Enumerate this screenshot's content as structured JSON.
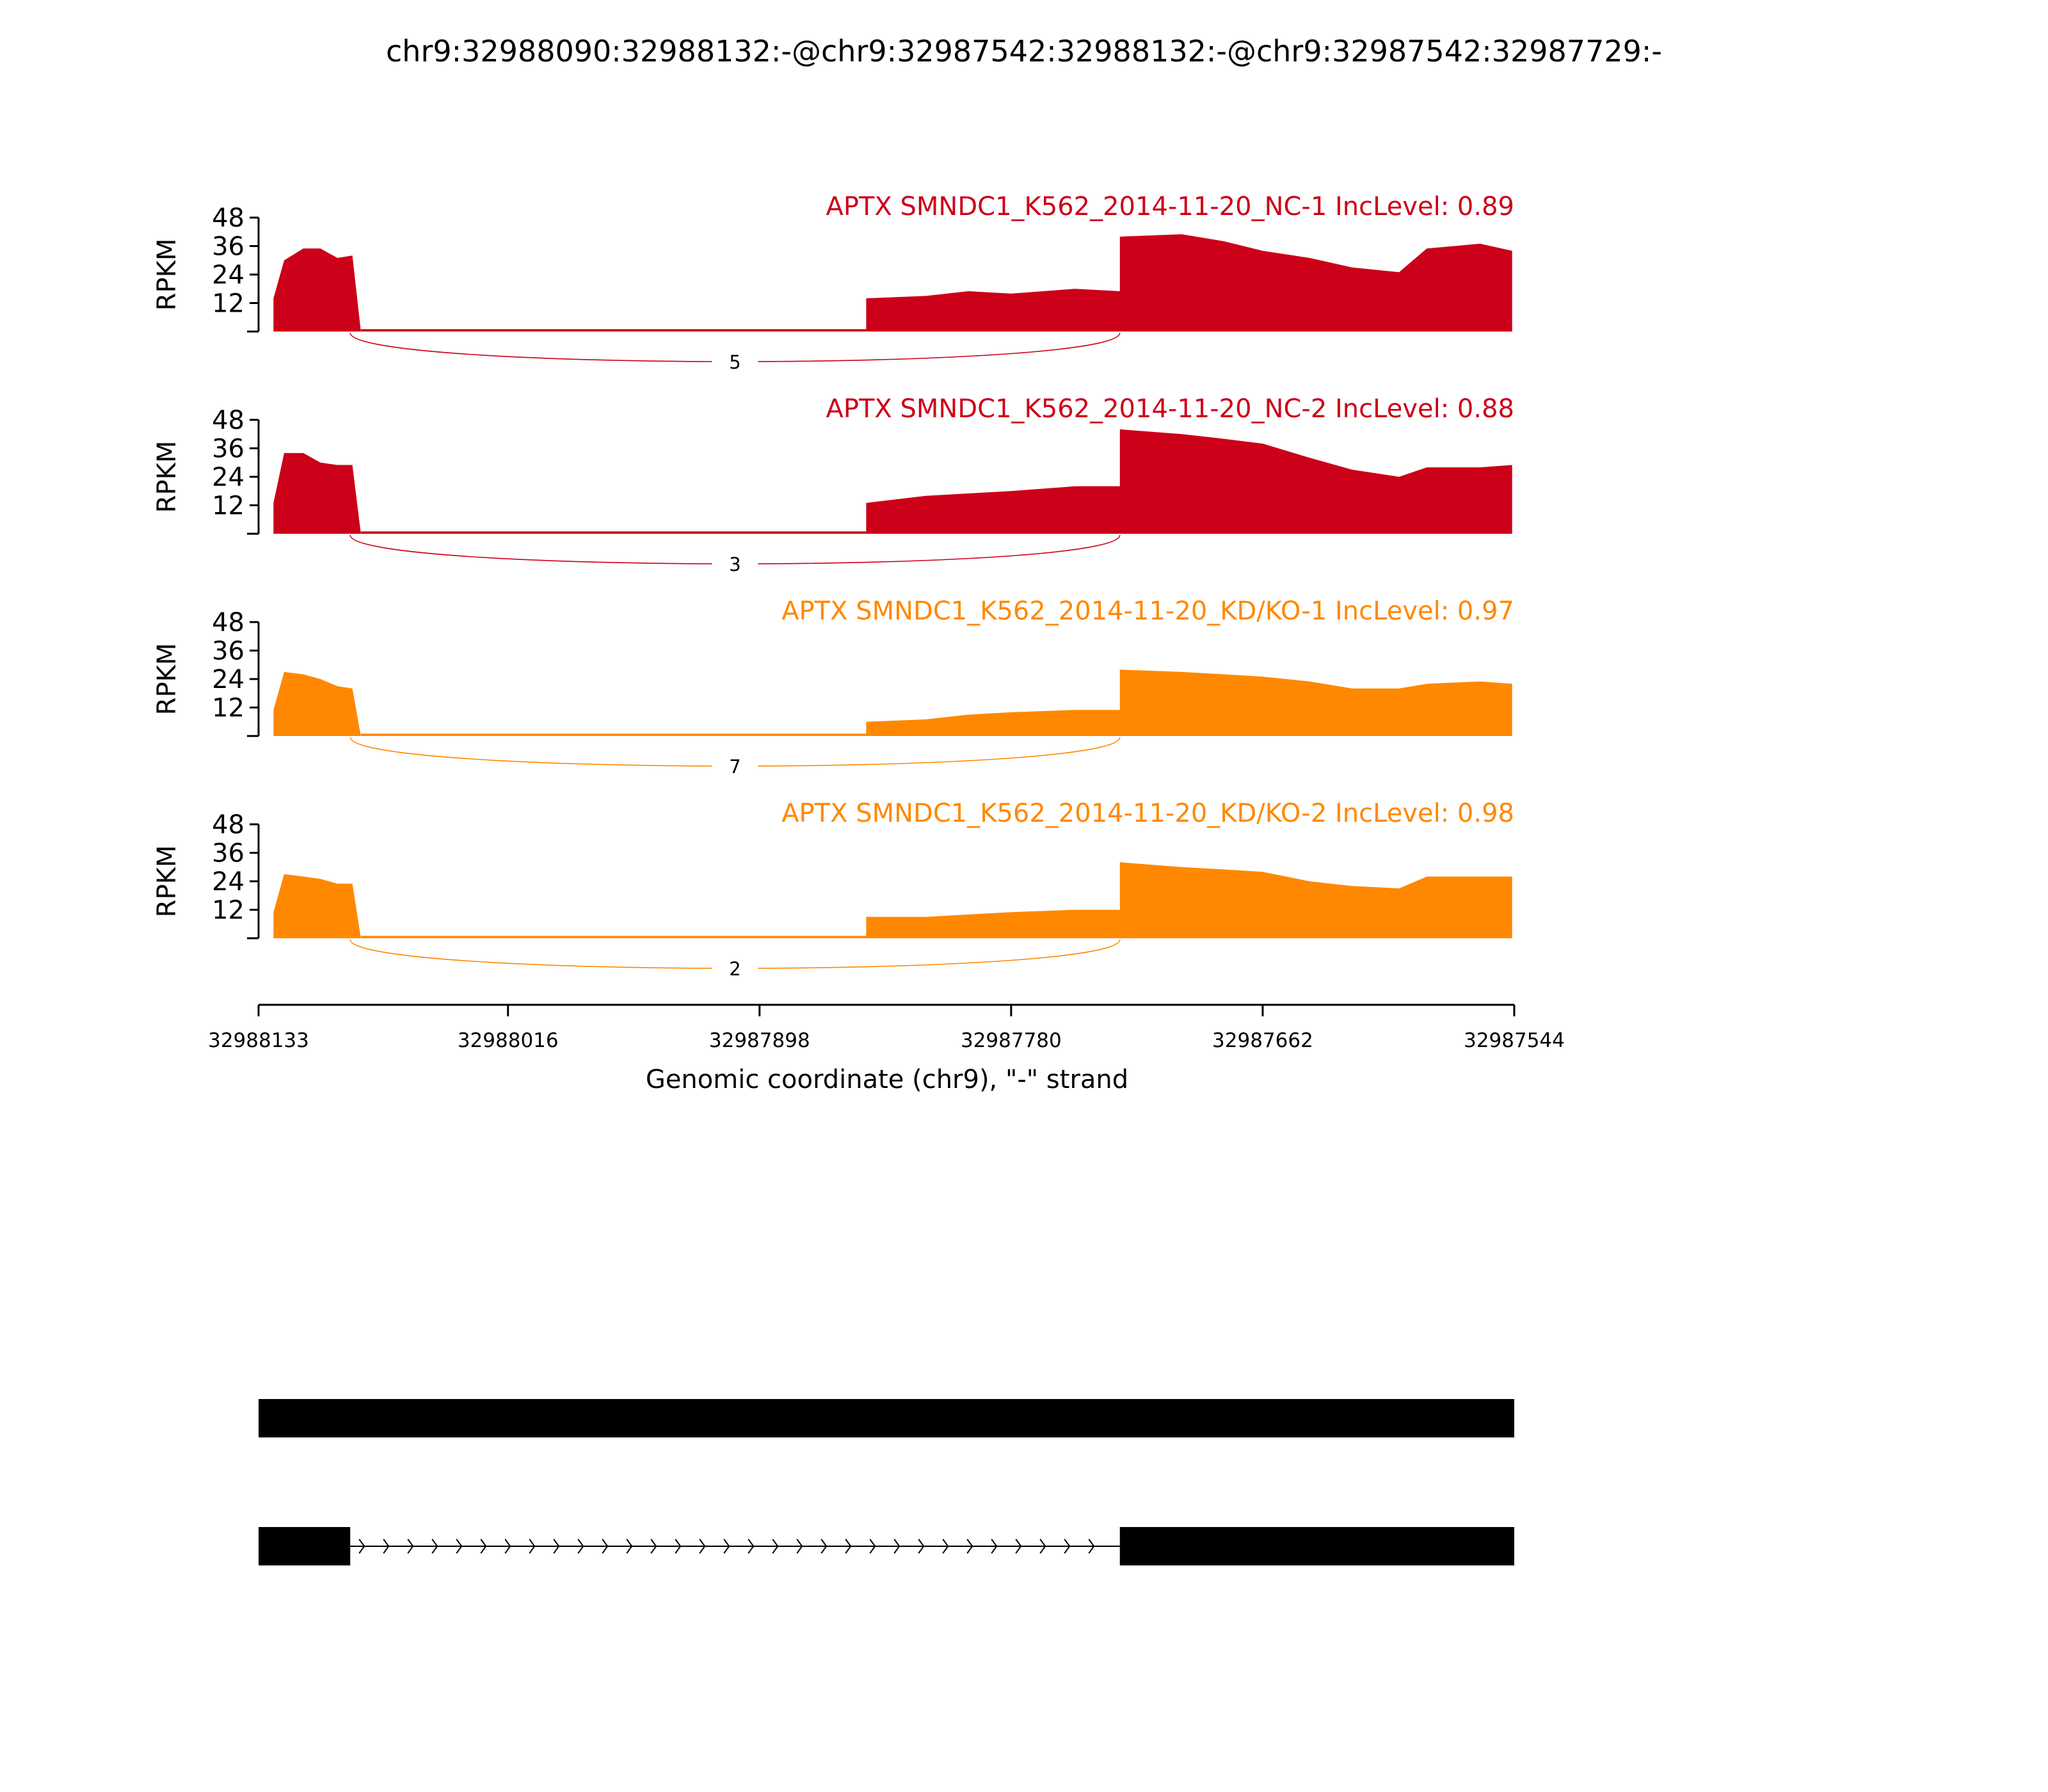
{
  "chart_data": {
    "type": "area",
    "title": "chr9:32988090:32988132:-@chr9:32987542:32988132:-@chr9:32987542:32987729:-",
    "ylabel": "RPKM",
    "xlabel": "Genomic coordinate (chr9), \"-\" strand",
    "xlim": [
      32988133,
      32987544
    ],
    "ylim": [
      0,
      48
    ],
    "yticks": [
      "12",
      "24",
      "36",
      "48"
    ],
    "xticks": [
      "32988133",
      "32988016",
      "32987898",
      "32987780",
      "32987662",
      "32987544"
    ],
    "grid": false,
    "colors": {
      "NC": "#cc0018",
      "KD": "#ff8800",
      "gene": "#000000"
    },
    "tracks": [
      {
        "label": "APTX SMNDC1_K562_2014-11-20_NC-1 IncLevel: 0.89",
        "color": "#cc0018",
        "junction_reads": "5",
        "exon1_profile": [
          [
            32988126,
            14
          ],
          [
            32988121,
            30
          ],
          [
            32988112,
            35
          ],
          [
            32988104,
            35
          ],
          [
            32988096,
            31
          ],
          [
            32988089,
            32
          ],
          [
            32988085,
            0
          ]
        ],
        "intron_level": 1,
        "exon2_profile": [
          [
            32987848,
            14
          ],
          [
            32987820,
            15
          ],
          [
            32987800,
            17
          ],
          [
            32987780,
            16
          ],
          [
            32987750,
            18
          ],
          [
            32987729,
            17
          ]
        ],
        "exon3_profile": [
          [
            32987729,
            40
          ],
          [
            32987700,
            41
          ],
          [
            32987680,
            38
          ],
          [
            32987662,
            34
          ],
          [
            32987640,
            31
          ],
          [
            32987620,
            27
          ],
          [
            32987598,
            25
          ],
          [
            32987585,
            35
          ],
          [
            32987560,
            37
          ],
          [
            32987545,
            34
          ]
        ]
      },
      {
        "label": "APTX SMNDC1_K562_2014-11-20_NC-2 IncLevel: 0.88",
        "color": "#cc0018",
        "junction_reads": "3",
        "exon1_profile": [
          [
            32988126,
            13
          ],
          [
            32988121,
            34
          ],
          [
            32988112,
            34
          ],
          [
            32988104,
            30
          ],
          [
            32988096,
            29
          ],
          [
            32988089,
            29
          ],
          [
            32988085,
            0
          ]
        ],
        "intron_level": 1,
        "exon2_profile": [
          [
            32987848,
            13
          ],
          [
            32987820,
            16
          ],
          [
            32987800,
            17
          ],
          [
            32987780,
            18
          ],
          [
            32987750,
            20
          ],
          [
            32987729,
            20
          ]
        ],
        "exon3_profile": [
          [
            32987729,
            44
          ],
          [
            32987700,
            42
          ],
          [
            32987680,
            40
          ],
          [
            32987662,
            38
          ],
          [
            32987640,
            32
          ],
          [
            32987620,
            27
          ],
          [
            32987598,
            24
          ],
          [
            32987585,
            28
          ],
          [
            32987560,
            28
          ],
          [
            32987545,
            29
          ]
        ]
      },
      {
        "label": "APTX SMNDC1_K562_2014-11-20_KD/KO-1 IncLevel: 0.97",
        "color": "#ff8800",
        "junction_reads": "7",
        "exon1_profile": [
          [
            32988126,
            11
          ],
          [
            32988121,
            27
          ],
          [
            32988112,
            26
          ],
          [
            32988104,
            24
          ],
          [
            32988096,
            21
          ],
          [
            32988089,
            20
          ],
          [
            32988085,
            0
          ]
        ],
        "intron_level": 1,
        "exon2_profile": [
          [
            32987848,
            6
          ],
          [
            32987820,
            7
          ],
          [
            32987800,
            9
          ],
          [
            32987780,
            10
          ],
          [
            32987750,
            11
          ],
          [
            32987729,
            11
          ]
        ],
        "exon3_profile": [
          [
            32987729,
            28
          ],
          [
            32987700,
            27
          ],
          [
            32987680,
            26
          ],
          [
            32987662,
            25
          ],
          [
            32987640,
            23
          ],
          [
            32987620,
            20
          ],
          [
            32987598,
            20
          ],
          [
            32987585,
            22
          ],
          [
            32987560,
            23
          ],
          [
            32987545,
            22
          ]
        ]
      },
      {
        "label": "APTX SMNDC1_K562_2014-11-20_KD/KO-2 IncLevel: 0.98",
        "color": "#ff8800",
        "junction_reads": "2",
        "exon1_profile": [
          [
            32988126,
            11
          ],
          [
            32988121,
            27
          ],
          [
            32988112,
            26
          ],
          [
            32988104,
            25
          ],
          [
            32988096,
            23
          ],
          [
            32988089,
            23
          ],
          [
            32988085,
            0
          ]
        ],
        "intron_level": 1,
        "exon2_profile": [
          [
            32987848,
            9
          ],
          [
            32987820,
            9
          ],
          [
            32987800,
            10
          ],
          [
            32987780,
            11
          ],
          [
            32987750,
            12
          ],
          [
            32987729,
            12
          ]
        ],
        "exon3_profile": [
          [
            32987729,
            32
          ],
          [
            32987700,
            30
          ],
          [
            32987680,
            29
          ],
          [
            32987662,
            28
          ],
          [
            32987640,
            24
          ],
          [
            32987620,
            22
          ],
          [
            32987598,
            21
          ],
          [
            32987585,
            26
          ],
          [
            32987560,
            26
          ],
          [
            32987545,
            26
          ]
        ]
      }
    ],
    "gene_models": [
      {
        "exons": [
          [
            32988133,
            32987544
          ]
        ]
      },
      {
        "exons": [
          [
            32988133,
            32988090
          ],
          [
            32987729,
            32987544
          ]
        ]
      }
    ]
  }
}
